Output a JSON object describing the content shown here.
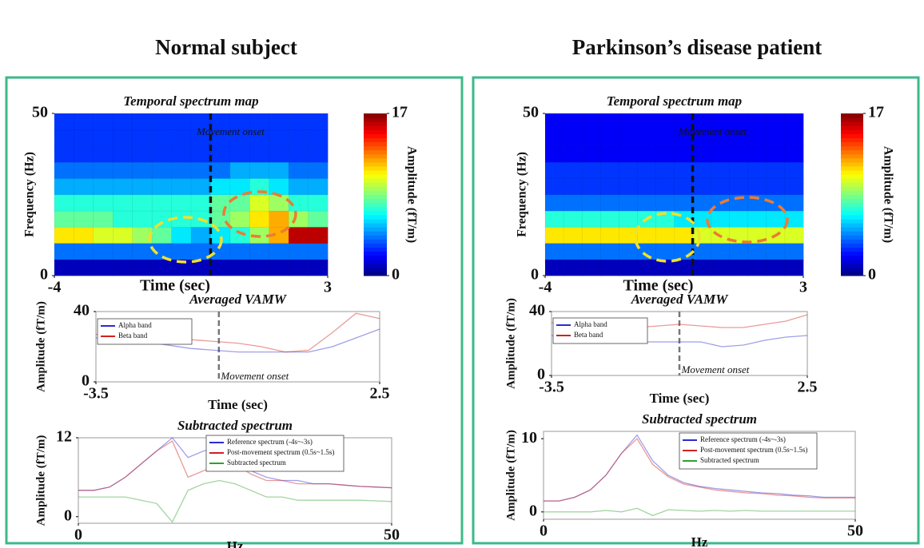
{
  "headings": [
    "Normal subject",
    "Parkinson’s disease patient"
  ],
  "chart_data": [
    {
      "type": "heatmap",
      "title": "Temporal spectrum map",
      "xlabel": "Time (sec)",
      "ylabel": "Frequency (Hz)",
      "annotation": "Movement onset",
      "vline": 0,
      "xlim": [
        -4,
        3
      ],
      "xticks": [
        -4,
        3
      ],
      "ylim": [
        0,
        50
      ],
      "yticks": [
        0,
        50
      ],
      "values": [
        [
          1,
          1,
          1,
          1,
          1,
          1,
          1,
          1,
          1,
          1,
          1,
          1,
          1,
          1
        ],
        [
          4,
          4,
          4,
          4,
          4,
          4,
          4,
          4,
          4,
          4,
          4,
          4,
          4,
          4
        ],
        [
          11,
          11,
          10,
          10,
          9,
          8,
          6,
          5,
          6,
          7,
          9,
          12,
          16,
          16
        ],
        [
          8,
          8,
          8,
          7,
          7,
          7,
          7,
          7,
          8,
          9,
          11,
          12,
          9,
          8
        ],
        [
          7,
          7,
          7,
          7,
          7,
          7,
          7,
          7,
          8,
          8,
          10,
          9,
          7,
          7
        ],
        [
          5,
          5,
          5,
          5,
          5,
          5,
          5,
          5,
          6,
          6,
          7,
          6,
          5,
          5
        ],
        [
          4,
          4,
          4,
          4,
          4,
          4,
          4,
          4,
          4,
          5,
          5,
          5,
          4,
          4
        ],
        [
          3,
          3,
          3,
          3,
          3,
          3,
          3,
          3,
          3,
          3,
          3,
          3,
          3,
          3
        ],
        [
          3,
          3,
          3,
          3,
          3,
          3,
          3,
          3,
          3,
          3,
          3,
          3,
          3,
          3
        ],
        [
          3,
          3,
          3,
          3,
          3,
          3,
          3,
          3,
          3,
          3,
          3,
          3,
          3,
          3
        ]
      ],
      "colorbar": {
        "label": "Amplitude (fT/m)",
        "lim": [
          0,
          17
        ],
        "ticks": [
          0,
          17
        ]
      }
    },
    {
      "type": "line",
      "title": "Averaged VAMW",
      "xlabel": "Time (sec)",
      "ylabel": "Amplitude (fT/m)",
      "annotation": "Movement onset",
      "vline": -0.9,
      "xlim": [
        -3.5,
        2.5
      ],
      "xticks": [
        -3.5,
        2.5
      ],
      "ylim": [
        0,
        40
      ],
      "yticks": [
        0,
        40
      ],
      "x": [
        -3.5,
        -3,
        -2.5,
        -2,
        -1.5,
        -1,
        -0.5,
        0,
        0.5,
        1,
        1.5,
        2,
        2.5
      ],
      "series": [
        {
          "name": "Alpha band",
          "color": "#2b2bd0",
          "values": [
            25,
            24,
            23,
            21,
            19,
            18,
            17,
            17,
            17,
            17,
            20,
            25,
            30
          ]
        },
        {
          "name": "Beta band",
          "color": "#d02020",
          "values": [
            27,
            27,
            26,
            25,
            24,
            23,
            22,
            20,
            17,
            18,
            28,
            39,
            36
          ]
        }
      ]
    },
    {
      "type": "line",
      "title": "Subtracted spectrum",
      "xlabel": "Hz",
      "ylabel": "Amplitude (fT/m)",
      "xlim": [
        0,
        50
      ],
      "xticks": [
        0,
        50
      ],
      "ylim": [
        -1,
        12
      ],
      "yticks": [
        0,
        12
      ],
      "x": [
        0,
        2.5,
        5,
        7.5,
        10,
        12.5,
        15,
        17.5,
        20,
        22.5,
        25,
        27.5,
        30,
        32.5,
        35,
        37.5,
        40,
        42.5,
        45,
        47.5,
        50
      ],
      "series": [
        {
          "name": "Reference spectrum (-4s~-3s)",
          "color": "#2b2bd0",
          "values": [
            4,
            4,
            4.5,
            6,
            8,
            10,
            12,
            9,
            10,
            10.5,
            9,
            7,
            6,
            5.5,
            5.5,
            5,
            5,
            4.8,
            4.6,
            4.5,
            4.4
          ]
        },
        {
          "name": "Post-movement spectrum (0.5s~1.5s)",
          "color": "#d02020",
          "values": [
            4,
            4,
            4.5,
            6,
            8,
            10,
            11.5,
            6,
            7,
            8,
            8,
            6.5,
            5.5,
            5.5,
            5,
            5,
            5,
            4.8,
            4.6,
            4.5,
            4.4
          ]
        },
        {
          "name": "Subtracted spectrum",
          "color": "#30a030",
          "values": [
            3,
            3,
            3,
            3,
            2.5,
            2,
            -0.8,
            4,
            5,
            5.5,
            5,
            4,
            3,
            3,
            2.5,
            2.5,
            2.5,
            2.5,
            2.5,
            2.4,
            2.3
          ]
        }
      ]
    },
    {
      "type": "heatmap",
      "title": "Temporal spectrum map",
      "xlabel": "Time (sec)",
      "ylabel": "Frequency (Hz)",
      "annotation": "Movement onset",
      "vline": 0,
      "xlim": [
        -4,
        3
      ],
      "xticks": [
        -4,
        3
      ],
      "ylim": [
        0,
        50
      ],
      "yticks": [
        0,
        50
      ],
      "values": [
        [
          1,
          1,
          1,
          1,
          1,
          1,
          1,
          1,
          1,
          1,
          1,
          1,
          1,
          1
        ],
        [
          4,
          4,
          4,
          4,
          4,
          4,
          4,
          4,
          4,
          4,
          4,
          4,
          4,
          4
        ],
        [
          11,
          11,
          11,
          11,
          11,
          11,
          11,
          11,
          10,
          10,
          10,
          10,
          10,
          10
        ],
        [
          7,
          7,
          7,
          7,
          7,
          7,
          7,
          6,
          6,
          6,
          6,
          6,
          6,
          6
        ],
        [
          4,
          4,
          4,
          4,
          4,
          4,
          4,
          4,
          4,
          4,
          4,
          4,
          4,
          4
        ],
        [
          3,
          3,
          3,
          3,
          3,
          3,
          3,
          3,
          3,
          3,
          3,
          3,
          3,
          3
        ],
        [
          3,
          3,
          3,
          3,
          3,
          3,
          3,
          3,
          3,
          3,
          3,
          3,
          3,
          3
        ],
        [
          2,
          2,
          2,
          2,
          2,
          2,
          2,
          2,
          2,
          2,
          2,
          2,
          2,
          2
        ],
        [
          2,
          2,
          2,
          2,
          2,
          2,
          2,
          2,
          2,
          2,
          2,
          2,
          2,
          2
        ],
        [
          2,
          2,
          2,
          2,
          2,
          2,
          2,
          2,
          2,
          2,
          2,
          2,
          2,
          2
        ]
      ],
      "colorbar": {
        "label": "Amplitude (fT/m)",
        "lim": [
          0,
          17
        ],
        "ticks": [
          0,
          17
        ]
      }
    },
    {
      "type": "line",
      "title": "Averaged VAMW",
      "xlabel": "Time (sec)",
      "ylabel": "Amplitude (fT/m)",
      "annotation": "Movement onset",
      "vline": -0.5,
      "xlim": [
        -3.5,
        2.5
      ],
      "xticks": [
        -3.5,
        2.5
      ],
      "ylim": [
        0,
        40
      ],
      "yticks": [
        0,
        40
      ],
      "x": [
        -3.5,
        -3,
        -2.5,
        -2,
        -1.5,
        -1,
        -0.5,
        0,
        0.5,
        1,
        1.5,
        2,
        2.5
      ],
      "series": [
        {
          "name": "Alpha band",
          "color": "#2b2bd0",
          "values": [
            25,
            23,
            22,
            21,
            21,
            21,
            21,
            21,
            18,
            19,
            22,
            24,
            25
          ]
        },
        {
          "name": "Beta band",
          "color": "#d02020",
          "values": [
            33,
            32,
            31,
            30,
            30,
            31,
            32,
            31,
            30,
            30,
            32,
            34,
            38
          ]
        }
      ]
    },
    {
      "type": "line",
      "title": "Subtracted spectrum",
      "xlabel": "Hz",
      "ylabel": "Amplitude (fT/m)",
      "xlim": [
        0,
        50
      ],
      "xticks": [
        0,
        50
      ],
      "ylim": [
        -1,
        11
      ],
      "yticks": [
        0,
        10
      ],
      "x": [
        0,
        2.5,
        5,
        7.5,
        10,
        12.5,
        15,
        17.5,
        20,
        22.5,
        25,
        27.5,
        30,
        32.5,
        35,
        37.5,
        40,
        42.5,
        45,
        47.5,
        50
      ],
      "series": [
        {
          "name": "Reference spectrum (-4s~-3s)",
          "color": "#2b2bd0",
          "values": [
            1.5,
            1.5,
            2,
            3,
            5,
            8,
            10.5,
            7,
            5,
            4,
            3.5,
            3.2,
            3,
            2.8,
            2.6,
            2.5,
            2.3,
            2.2,
            2,
            2,
            2
          ]
        },
        {
          "name": "Post-movement spectrum (0.5s~1.5s)",
          "color": "#d02020",
          "values": [
            1.5,
            1.5,
            2,
            3,
            5,
            8,
            10,
            6.5,
            4.8,
            3.8,
            3.4,
            3,
            2.8,
            2.6,
            2.5,
            2.3,
            2.2,
            2,
            1.9,
            1.9,
            1.9
          ]
        },
        {
          "name": "Subtracted spectrum",
          "color": "#30a030",
          "values": [
            0,
            0,
            0,
            0,
            0.2,
            0,
            0.5,
            -0.5,
            0.3,
            0.2,
            0.1,
            0.2,
            0.1,
            0.2,
            0.1,
            0.1,
            0.1,
            0.1,
            0.1,
            0.1,
            0.1
          ]
        }
      ]
    }
  ]
}
